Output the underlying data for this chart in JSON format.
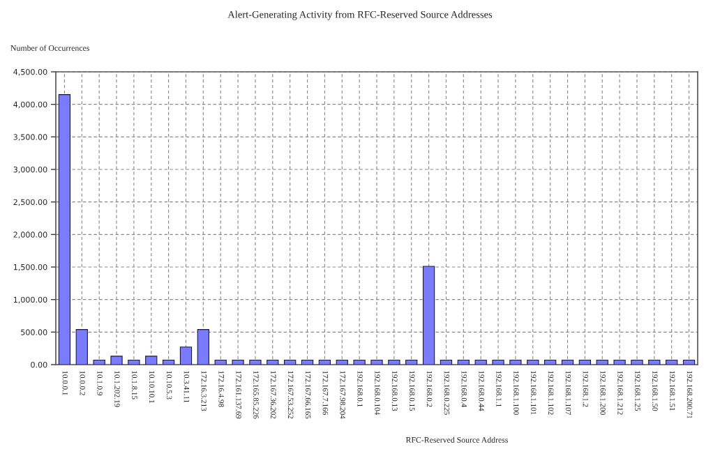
{
  "chart_data": {
    "type": "bar",
    "title": "Alert-Generating Activity from RFC-Reserved Source Addresses",
    "xlabel": "RFC-Reserved Source Address",
    "ylabel": "Number of Occurrences",
    "categories": [
      "10.0.0.1",
      "10.0.0.2",
      "10.1.0.9",
      "10.1.202.19",
      "10.1.8.15",
      "10.10.10.1",
      "10.10.5.3",
      "10.3.41.11",
      "172.16.3.213",
      "172.16.4.98",
      "172.161.137.69",
      "172.165.85.226",
      "172.167.36.202",
      "172.167.53.252",
      "172.167.66.165",
      "172.167.7.166",
      "172.167.98.204",
      "192.168.0.1",
      "192.168.0.104",
      "192.168.0.13",
      "192.168.0.15",
      "192.168.0.2",
      "192.168.0.225",
      "192.168.0.4",
      "192.168.0.44",
      "192.168.1.1",
      "192.168.1.100",
      "192.168.1.101",
      "192.168.1.102",
      "192.168.1.107",
      "192.168.1.2",
      "192.168.1.200",
      "192.168.1.212",
      "192.168.1.25",
      "192.168.1.50",
      "192.168.1.51",
      "192.168.200.71"
    ],
    "values": [
      4150,
      540,
      70,
      130,
      70,
      130,
      70,
      270,
      540,
      70,
      70,
      70,
      70,
      70,
      70,
      70,
      70,
      70,
      70,
      70,
      70,
      1510,
      70,
      70,
      70,
      70,
      70,
      70,
      70,
      70,
      70,
      70,
      70,
      70,
      70,
      70,
      70
    ],
    "color": "#7b7bff",
    "ylim": [
      0,
      4500
    ],
    "yticks": [
      {
        "value": 0,
        "label": "0.00"
      },
      {
        "value": 500,
        "label": "500.00"
      },
      {
        "value": 1000,
        "label": "1,000.00"
      },
      {
        "value": 1500,
        "label": "1,500.00"
      },
      {
        "value": 2000,
        "label": "2,000.00"
      },
      {
        "value": 2500,
        "label": "2,500.00"
      },
      {
        "value": 3000,
        "label": "3,000.00"
      },
      {
        "value": 3500,
        "label": "3,500.00"
      },
      {
        "value": 4000,
        "label": "4,000.00"
      },
      {
        "value": 4500,
        "label": "4,500.00"
      }
    ],
    "grid": true
  }
}
